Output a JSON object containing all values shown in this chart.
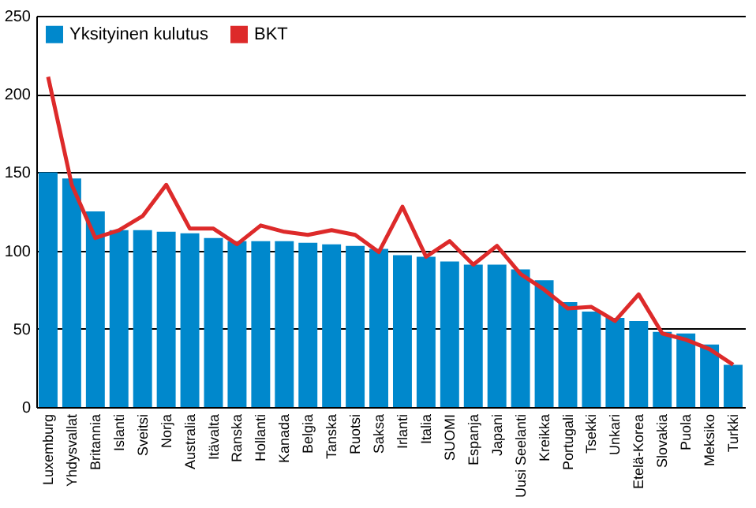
{
  "chart_data": {
    "type": "bar",
    "categories": [
      "Luxemburg",
      "Yhdysvallat",
      "Britannia",
      "Islanti",
      "Sveitsi",
      "Norja",
      "Australia",
      "Itävalta",
      "Ranska",
      "Hollanti",
      "Kanada",
      "Belgia",
      "Tanska",
      "Ruotsi",
      "Saksa",
      "Irlanti",
      "Italia",
      "SUOMI",
      "Espanja",
      "Japani",
      "Uusi Seelanti",
      "Kreikka",
      "Portugali",
      "Tsekki",
      "Unkari",
      "Etelä-Korea",
      "Slovakia",
      "Puola",
      "Meksiko",
      "Turkki"
    ],
    "series": [
      {
        "name": "Yksityinen kulutus",
        "color": "#0088cc",
        "values": [
          150,
          146,
          125,
          113,
          113,
          112,
          111,
          108,
          106,
          106,
          106,
          105,
          104,
          103,
          101,
          97,
          96,
          93,
          91,
          91,
          88,
          81,
          67,
          61,
          57,
          55,
          48,
          47,
          40,
          27
        ]
      },
      {
        "name": "BKT",
        "type": "line",
        "color": "#dd2a2a",
        "values": [
          211,
          142,
          108,
          113,
          122,
          142,
          114,
          114,
          104,
          116,
          112,
          110,
          113,
          110,
          99,
          128,
          96,
          106,
          91,
          103,
          85,
          75,
          63,
          64,
          55,
          72,
          47,
          43,
          37,
          27
        ]
      }
    ],
    "ylim": [
      0,
      250
    ],
    "yticks": [
      0,
      50,
      100,
      150,
      200,
      250
    ],
    "grid": "y",
    "legend": "top left"
  }
}
